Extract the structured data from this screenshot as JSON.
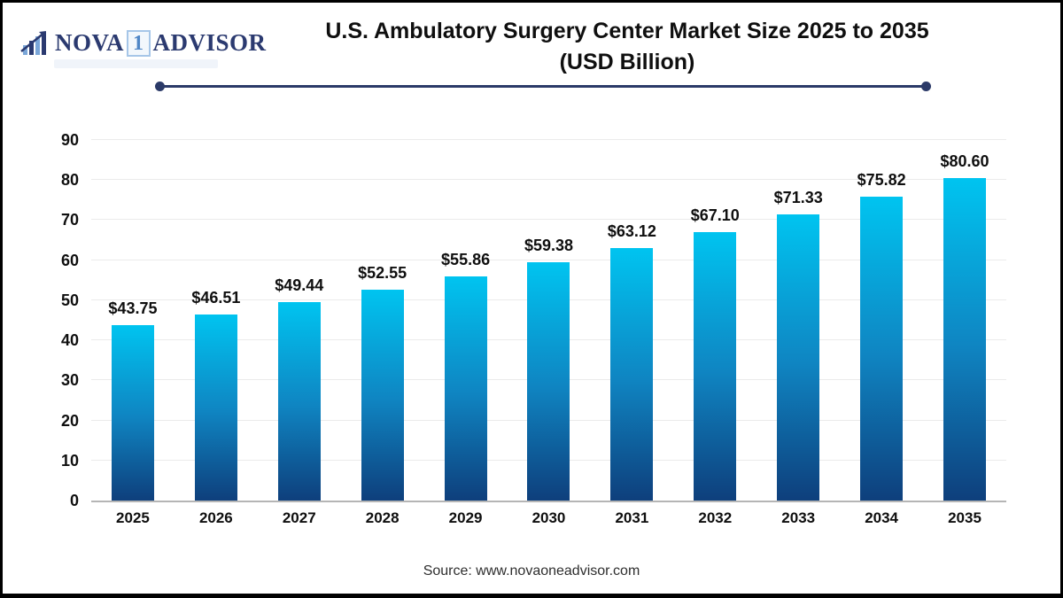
{
  "branding": {
    "logo_part1": "NOVA",
    "logo_boxed": "1",
    "logo_part2": "ADVISOR",
    "logo_icon": "bar-chart-growth-icon",
    "color_navy": "#2b3a70",
    "color_lightblue": "#7aa6d8"
  },
  "header": {
    "title_line1": "U.S. Ambulatory Surgery Center Market Size 2025 to 2035",
    "title_line2": "(USD Billion)",
    "divider_color": "#2b3a68"
  },
  "footer": {
    "source_text": "Source: www.novaoneadvisor.com"
  },
  "chart_data": {
    "type": "bar",
    "title": "U.S. Ambulatory Surgery Center Market Size 2025 to 2035 (USD Billion)",
    "unit": "USD Billion",
    "categories": [
      "2025",
      "2026",
      "2027",
      "2028",
      "2029",
      "2030",
      "2031",
      "2032",
      "2033",
      "2034",
      "2035"
    ],
    "values": [
      43.75,
      46.51,
      49.44,
      52.55,
      55.86,
      59.38,
      63.12,
      67.1,
      71.33,
      75.82,
      80.6
    ],
    "value_labels": [
      "$43.75",
      "$46.51",
      "$49.44",
      "$52.55",
      "$55.86",
      "$59.38",
      "$63.12",
      "$67.10",
      "$71.33",
      "$75.82",
      "$80.60"
    ],
    "xlabel": "",
    "ylabel": "",
    "ylim": [
      0,
      90
    ],
    "yticks": [
      0,
      10,
      20,
      30,
      40,
      50,
      60,
      70,
      80,
      90
    ],
    "grid": "horizontal",
    "legend": "none",
    "bar_gradient": {
      "top": "#00c4f0",
      "middle": "#0f85c2",
      "bottom": "#0e3f7c"
    },
    "gridline_color": "#ebebeb",
    "axis_line_color": "#b5b5b5",
    "label_color": "#0f0f0f"
  }
}
